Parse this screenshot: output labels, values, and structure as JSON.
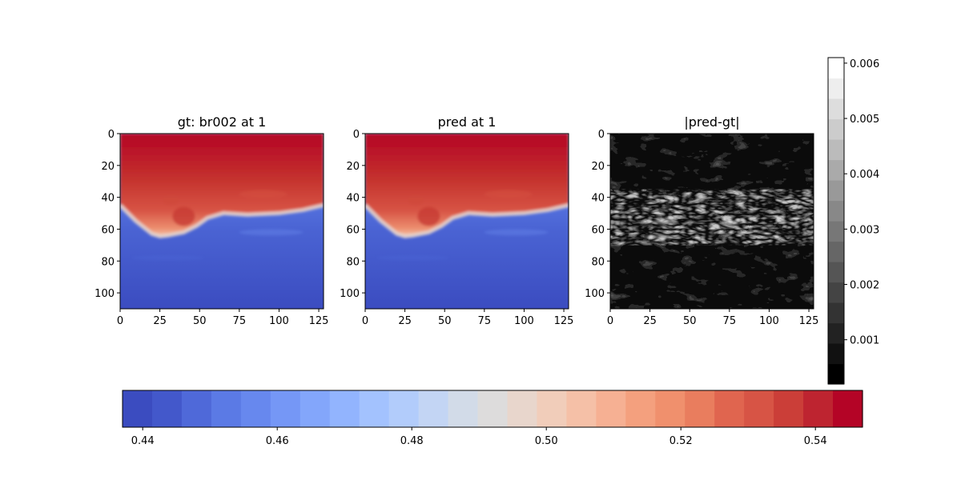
{
  "chart_data": [
    {
      "type": "heatmap",
      "title": "gt: br002 at 1",
      "xlim": [
        0,
        128
      ],
      "ylim": [
        110,
        0
      ],
      "xticks": [
        "0",
        "25",
        "50",
        "75",
        "100",
        "125"
      ],
      "yticks": [
        "0",
        "20",
        "40",
        "60",
        "80",
        "100"
      ],
      "colormap": "coolwarm",
      "value_range": [
        0.437,
        0.547
      ],
      "interface_depth_profile": {
        "x": [
          0,
          10,
          20,
          25,
          30,
          40,
          48,
          55,
          65,
          80,
          100,
          115,
          128
        ],
        "y": [
          45,
          55,
          63,
          64.5,
          64,
          62,
          58,
          53,
          50,
          51,
          50,
          48,
          45
        ]
      }
    },
    {
      "type": "heatmap",
      "title": "pred at 1",
      "xlim": [
        0,
        128
      ],
      "ylim": [
        110,
        0
      ],
      "xticks": [
        "0",
        "25",
        "50",
        "75",
        "100",
        "125"
      ],
      "yticks": [
        "0",
        "20",
        "40",
        "60",
        "80",
        "100"
      ],
      "colormap": "coolwarm",
      "value_range": [
        0.437,
        0.547
      ],
      "interface_depth_profile": {
        "x": [
          0,
          10,
          20,
          25,
          30,
          40,
          48,
          55,
          65,
          80,
          100,
          115,
          128
        ],
        "y": [
          45,
          55,
          63,
          64.5,
          64,
          62,
          58,
          53,
          50,
          51,
          50,
          48,
          45
        ]
      }
    },
    {
      "type": "heatmap",
      "title": "|pred-gt|",
      "xlim": [
        0,
        128
      ],
      "ylim": [
        110,
        0
      ],
      "xticks": [
        "0",
        "25",
        "50",
        "75",
        "100",
        "125"
      ],
      "yticks": [
        "0",
        "20",
        "40",
        "60",
        "80",
        "100"
      ],
      "colormap": "gray",
      "value_range": [
        0.0002,
        0.0061
      ]
    }
  ],
  "colorbar_main": {
    "orientation": "horizontal",
    "range": [
      0.437,
      0.547
    ],
    "ticks": [
      "0.44",
      "0.46",
      "0.48",
      "0.50",
      "0.52",
      "0.54"
    ],
    "tick_values": [
      0.44,
      0.46,
      0.48,
      0.5,
      0.52,
      0.54
    ]
  },
  "colorbar_diff": {
    "orientation": "vertical",
    "range": [
      0.0002,
      0.0061
    ],
    "ticks": [
      "0.001",
      "0.002",
      "0.003",
      "0.004",
      "0.005",
      "0.006"
    ],
    "tick_values": [
      0.001,
      0.002,
      0.003,
      0.004,
      0.005,
      0.006
    ]
  }
}
